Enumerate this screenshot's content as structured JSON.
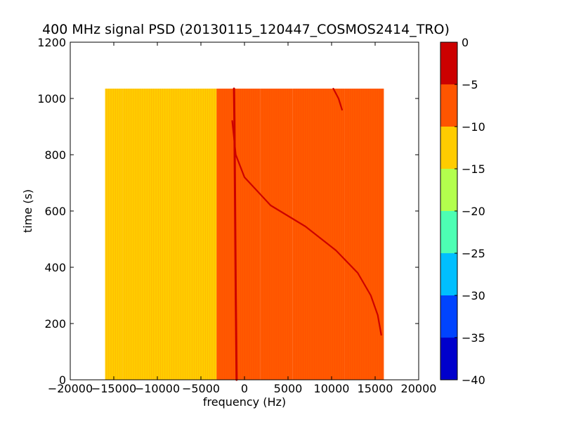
{
  "chart_data": {
    "type": "heatmap",
    "title": "400 MHz signal PSD (20130115_120447_COSMOS2414_TRO)",
    "xlabel": "frequency (Hz)",
    "ylabel": "time (s)",
    "xlim": [
      -20000,
      20000
    ],
    "ylim": [
      0,
      1200
    ],
    "xticks": [
      -20000,
      -15000,
      -10000,
      -5000,
      0,
      5000,
      10000,
      15000,
      20000
    ],
    "xtick_labels": [
      "−20000",
      "−15000",
      "−10000",
      "−5000",
      "0",
      "5000",
      "10000",
      "15000",
      "20000"
    ],
    "yticks": [
      0,
      200,
      400,
      600,
      800,
      1000,
      1200
    ],
    "ytick_labels": [
      "0",
      "200",
      "400",
      "600",
      "800",
      "1000",
      "1200"
    ],
    "data_extent": {
      "x": [
        -16000,
        16000
      ],
      "y": [
        0,
        1035
      ]
    },
    "regions": [
      {
        "x": [
          -16000,
          -14000
        ],
        "level": -12.5
      },
      {
        "x": [
          -14000,
          -3200
        ],
        "level": -12.5
      },
      {
        "x": [
          -3200,
          1800
        ],
        "level": -10
      },
      {
        "x": [
          1800,
          5500
        ],
        "level": -9
      },
      {
        "x": [
          5500,
          11500
        ],
        "level": -7.5
      },
      {
        "x": [
          11500,
          16000
        ],
        "level": -9
      }
    ],
    "features": [
      {
        "name": "carrier-line",
        "level": -3,
        "points": [
          [
            -900,
            0
          ],
          [
            -1000,
            300
          ],
          [
            -1100,
            700
          ],
          [
            -1150,
            920
          ],
          [
            -1200,
            1035
          ]
        ]
      },
      {
        "name": "doppler-curve",
        "level": -1,
        "points": [
          [
            -1400,
            920
          ],
          [
            -1000,
            800
          ],
          [
            0,
            720
          ],
          [
            3000,
            620
          ],
          [
            7000,
            545
          ],
          [
            10500,
            460
          ],
          [
            13000,
            380
          ],
          [
            14500,
            300
          ],
          [
            15300,
            230
          ],
          [
            15700,
            160
          ]
        ]
      },
      {
        "name": "upper-curve",
        "level": -2,
        "points": [
          [
            10200,
            1035
          ],
          [
            10800,
            1000
          ],
          [
            11200,
            960
          ]
        ]
      }
    ],
    "colorbar": {
      "ticks": [
        0,
        -5,
        -10,
        -15,
        -20,
        -25,
        -30,
        -35,
        -40
      ],
      "tick_labels": [
        "0",
        "−5",
        "−10",
        "−15",
        "−20",
        "−25",
        "−30",
        "−35",
        "−40"
      ],
      "levels": [
        {
          "from": -5,
          "to": 0,
          "color": "#cc0000"
        },
        {
          "from": -10,
          "to": -5,
          "color": "#ff5500"
        },
        {
          "from": -15,
          "to": -10,
          "color": "#ffcc00"
        },
        {
          "from": -20,
          "to": -15,
          "color": "#b3ff4d"
        },
        {
          "from": -25,
          "to": -20,
          "color": "#4dffb3"
        },
        {
          "from": -30,
          "to": -25,
          "color": "#00bfff"
        },
        {
          "from": -35,
          "to": -30,
          "color": "#0044ff"
        },
        {
          "from": -40,
          "to": -35,
          "color": "#0000cc"
        }
      ]
    },
    "grid": false,
    "legend": "none"
  }
}
